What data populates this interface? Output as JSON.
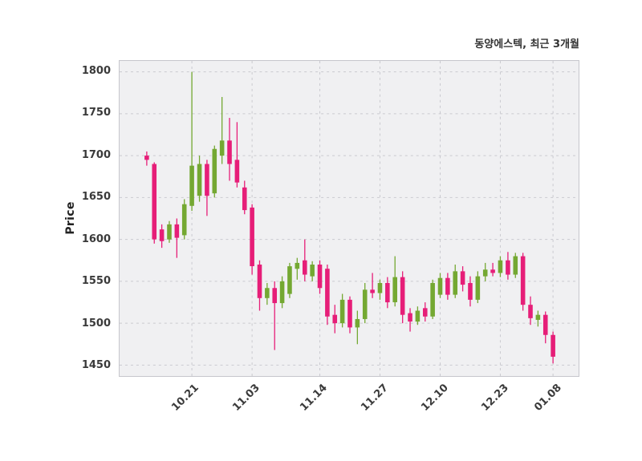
{
  "chart_data": {
    "type": "candlestick",
    "title": "동양에스텍, 최근 3개월",
    "ylabel": "Price",
    "ylim": [
      1437,
      1813
    ],
    "yticks": [
      1450,
      1500,
      1550,
      1600,
      1650,
      1700,
      1750,
      1800
    ],
    "xticks": [
      {
        "index": 6,
        "label": "10.21"
      },
      {
        "index": 14,
        "label": "11.03"
      },
      {
        "index": 23,
        "label": "11.14"
      },
      {
        "index": 31,
        "label": "11.27"
      },
      {
        "index": 39,
        "label": "12.10"
      },
      {
        "index": 47,
        "label": "12.23"
      },
      {
        "index": 54,
        "label": "01.08"
      }
    ],
    "grid": true,
    "legend": false,
    "colors": {
      "up": "#74a832",
      "down": "#e61e78",
      "plot_bg": "#f0f0f2",
      "grid": "#c9c9cf",
      "border": "#c6c6cc",
      "text": "#3a3a3a"
    },
    "candles_ohlc": [
      [
        1700,
        1705,
        1688,
        1695
      ],
      [
        1690,
        1692,
        1595,
        1600
      ],
      [
        1612,
        1618,
        1590,
        1598
      ],
      [
        1600,
        1622,
        1596,
        1618
      ],
      [
        1618,
        1625,
        1578,
        1602
      ],
      [
        1605,
        1648,
        1600,
        1642
      ],
      [
        1640,
        1800,
        1634,
        1688
      ],
      [
        1652,
        1700,
        1645,
        1690
      ],
      [
        1690,
        1695,
        1628,
        1652
      ],
      [
        1655,
        1712,
        1650,
        1708
      ],
      [
        1700,
        1770,
        1690,
        1718
      ],
      [
        1718,
        1745,
        1670,
        1690
      ],
      [
        1695,
        1740,
        1662,
        1668
      ],
      [
        1662,
        1670,
        1630,
        1635
      ],
      [
        1638,
        1642,
        1558,
        1568
      ],
      [
        1570,
        1575,
        1515,
        1530
      ],
      [
        1530,
        1548,
        1522,
        1542
      ],
      [
        1542,
        1550,
        1468,
        1524
      ],
      [
        1524,
        1556,
        1518,
        1550
      ],
      [
        1535,
        1572,
        1530,
        1568
      ],
      [
        1565,
        1578,
        1552,
        1572
      ],
      [
        1575,
        1600,
        1550,
        1558
      ],
      [
        1556,
        1574,
        1550,
        1570
      ],
      [
        1570,
        1575,
        1535,
        1542
      ],
      [
        1565,
        1570,
        1498,
        1508
      ],
      [
        1510,
        1522,
        1488,
        1500
      ],
      [
        1500,
        1535,
        1495,
        1528
      ],
      [
        1528,
        1532,
        1488,
        1495
      ],
      [
        1495,
        1515,
        1475,
        1505
      ],
      [
        1505,
        1548,
        1500,
        1540
      ],
      [
        1540,
        1560,
        1530,
        1536
      ],
      [
        1536,
        1552,
        1528,
        1548
      ],
      [
        1548,
        1555,
        1518,
        1525
      ],
      [
        1525,
        1580,
        1520,
        1555
      ],
      [
        1555,
        1562,
        1500,
        1510
      ],
      [
        1512,
        1518,
        1490,
        1502
      ],
      [
        1502,
        1520,
        1498,
        1515
      ],
      [
        1518,
        1525,
        1502,
        1508
      ],
      [
        1508,
        1552,
        1505,
        1548
      ],
      [
        1534,
        1560,
        1530,
        1554
      ],
      [
        1554,
        1560,
        1528,
        1534
      ],
      [
        1534,
        1570,
        1530,
        1562
      ],
      [
        1562,
        1568,
        1538,
        1546
      ],
      [
        1548,
        1556,
        1520,
        1528
      ],
      [
        1528,
        1562,
        1524,
        1556
      ],
      [
        1556,
        1572,
        1550,
        1564
      ],
      [
        1564,
        1572,
        1556,
        1560
      ],
      [
        1560,
        1580,
        1555,
        1575
      ],
      [
        1575,
        1585,
        1552,
        1558
      ],
      [
        1558,
        1584,
        1554,
        1580
      ],
      [
        1580,
        1584,
        1515,
        1522
      ],
      [
        1522,
        1532,
        1498,
        1506
      ],
      [
        1504,
        1515,
        1496,
        1510
      ],
      [
        1510,
        1514,
        1476,
        1486
      ],
      [
        1486,
        1490,
        1452,
        1460
      ]
    ]
  }
}
